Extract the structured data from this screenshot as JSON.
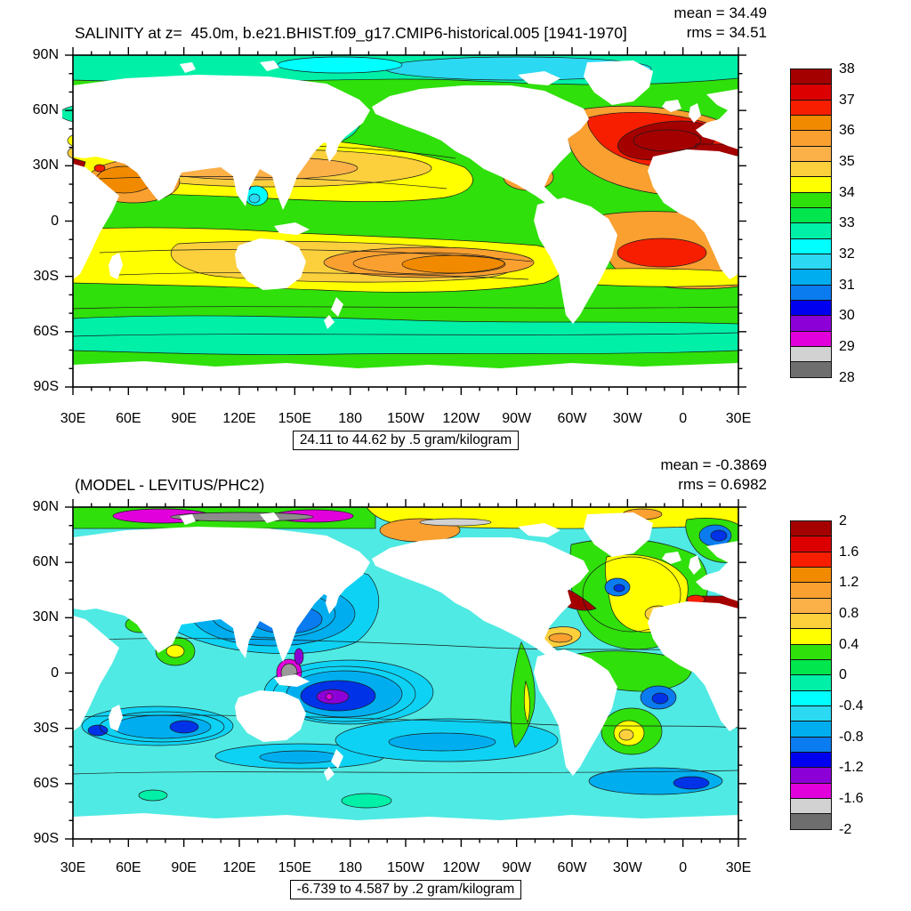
{
  "figure": {
    "background": "#ffffff",
    "land_color": "#ffffff",
    "palette_top_to_bottom": [
      "#A40000",
      "#DC0000",
      "#F71E00",
      "#F28A00",
      "#F9A030",
      "#FBB048",
      "#FBD03C",
      "#FFFF00",
      "#2FE00A",
      "#00E64C",
      "#00F0A8",
      "#00FFFF",
      "#2BD9F2",
      "#00AEEF",
      "#0A7CF0",
      "#0000F0",
      "#8C00D7",
      "#E100DC",
      "#D2D2D2",
      "#6E6E6E"
    ],
    "axes": {
      "x_tick_labels": [
        "30E",
        "60E",
        "90E",
        "120E",
        "150E",
        "180",
        "150W",
        "120W",
        "90W",
        "60W",
        "30W",
        "0",
        "30E"
      ],
      "y_tick_labels": [
        "90N",
        "60N",
        "30N",
        "0",
        "30S",
        "60S",
        "90S"
      ],
      "minor_ticks_per_major": 2
    },
    "panels": [
      {
        "id": "salinity-model",
        "title": "SALINITY at z=  45.0m, b.e21.BHIST.f09_g17.CMIP6-historical.005 [1941-1970]",
        "mean_text": "mean = 34.49",
        "rms_text": "rms = 34.51",
        "range_caption": "24.11 to 44.62 by .5 gram/kilogram",
        "colorbar_labels": [
          "38",
          "37",
          "36",
          "35",
          "34",
          "33",
          "32",
          "31",
          "30",
          "29",
          "28"
        ]
      },
      {
        "id": "model-minus-obs",
        "title": "(MODEL - LEVITUS/PHC2)",
        "mean_text": "mean = -0.3869",
        "rms_text": "rms = 0.6982",
        "range_caption": "-6.739 to 4.587 by .2 gram/kilogram",
        "colorbar_labels": [
          "2",
          "1.6",
          "1.2",
          "0.8",
          "0.4",
          "0",
          "-0.4",
          "-0.8",
          "-1.2",
          "-1.6",
          "-2"
        ]
      }
    ]
  },
  "chart_data": [
    {
      "type": "heatmap",
      "subtype": "filled-contour-world-map",
      "title": "SALINITY at z=  45.0m, b.e21.BHIST.f09_g17.CMIP6-historical.005 [1941-1970]",
      "variable": "SALINITY",
      "depth_label": "z= 45.0m",
      "case_name": "b.e21.BHIST.f09_g17.CMIP6-historical.005",
      "period": "1941-1970",
      "stats": {
        "mean": 34.49,
        "rms": 34.51
      },
      "units": "gram/kilogram",
      "field_range": {
        "min": 24.11,
        "max": 44.62,
        "contour_interval": 0.5
      },
      "colorbar": {
        "min": 28,
        "max": 38,
        "segment_step": 0.5,
        "tick_values": [
          38,
          37,
          36,
          35,
          34,
          33,
          32,
          31,
          30,
          29,
          28
        ],
        "colors_top_to_bottom": [
          "#A40000",
          "#DC0000",
          "#F71E00",
          "#F28A00",
          "#F9A030",
          "#FBB048",
          "#FBD03C",
          "#FFFF00",
          "#2FE00A",
          "#00E64C",
          "#00F0A8",
          "#00FFFF",
          "#2BD9F2",
          "#00AEEF",
          "#0A7CF0",
          "#0000F0",
          "#8C00D7",
          "#E100DC",
          "#D2D2D2",
          "#6E6E6E"
        ]
      },
      "x_axis": {
        "tick_labels": [
          "30E",
          "60E",
          "90E",
          "120E",
          "150E",
          "180",
          "150W",
          "120W",
          "90W",
          "60W",
          "30W",
          "0",
          "30E"
        ],
        "minor_per_major": 2
      },
      "y_axis": {
        "tick_labels": [
          "90N",
          "60N",
          "30N",
          "0",
          "30S",
          "60S",
          "90S"
        ],
        "minor_per_major": 2
      },
      "projection": "equirectangular, longitude 30E eastward around to 30E",
      "land_color": "#ffffff",
      "notable_features": [
        "dark red high-salinity subtropical North Atlantic gyre ~37.5",
        "red patch subtropical South Atlantic",
        "orange South Pacific subtropical gyre core",
        "green Southern Ocean and equatorial Pacific ~33-34",
        "cyan/blue fresh Arctic and NW Pacific ~30-32",
        "dark red Red Sea and Mediterranean"
      ]
    },
    {
      "type": "heatmap",
      "subtype": "filled-contour-world-map",
      "title": "(MODEL - LEVITUS/PHC2)",
      "stats": {
        "mean": -0.3869,
        "rms": 0.6982
      },
      "units": "gram/kilogram",
      "field_range": {
        "min": -6.739,
        "max": 4.587,
        "contour_interval": 0.2
      },
      "colorbar": {
        "min": -2,
        "max": 2,
        "segment_step": 0.2,
        "tick_values": [
          2,
          1.6,
          1.2,
          0.8,
          0.4,
          0,
          -0.4,
          -0.8,
          -1.2,
          -1.6,
          -2
        ],
        "colors_top_to_bottom": [
          "#A40000",
          "#DC0000",
          "#F71E00",
          "#F28A00",
          "#F9A030",
          "#FBB048",
          "#FBD03C",
          "#FFFF00",
          "#2FE00A",
          "#00E64C",
          "#00F0A8",
          "#00FFFF",
          "#2BD9F2",
          "#00AEEF",
          "#0A7CF0",
          "#0000F0",
          "#8C00D7",
          "#E100DC",
          "#D2D2D2",
          "#6E6E6E"
        ]
      },
      "x_axis": {
        "tick_labels": [
          "30E",
          "60E",
          "90E",
          "120E",
          "150E",
          "180",
          "150W",
          "120W",
          "90W",
          "60W",
          "30W",
          "0",
          "30E"
        ],
        "minor_per_major": 2
      },
      "y_axis": {
        "tick_labels": [
          "90N",
          "60N",
          "30N",
          "0",
          "30S",
          "60S",
          "90S"
        ],
        "minor_per_major": 2
      },
      "projection": "equirectangular, longitude 30E eastward around to 30E",
      "land_color": "#ffffff",
      "notable_features": [
        "broad cyan/blue fresh bias over Pacific and Indian oceans",
        "deep blue/purple/magenta minimum west-central equatorial Pacific",
        "yellow/green salty patch in North Atlantic",
        "dark red salty bias along NW Atlantic coast and Mediterranean",
        "magenta/gray fresh extremes along Arctic margin",
        "yellow salty band across Eurasian Arctic"
      ]
    }
  ]
}
